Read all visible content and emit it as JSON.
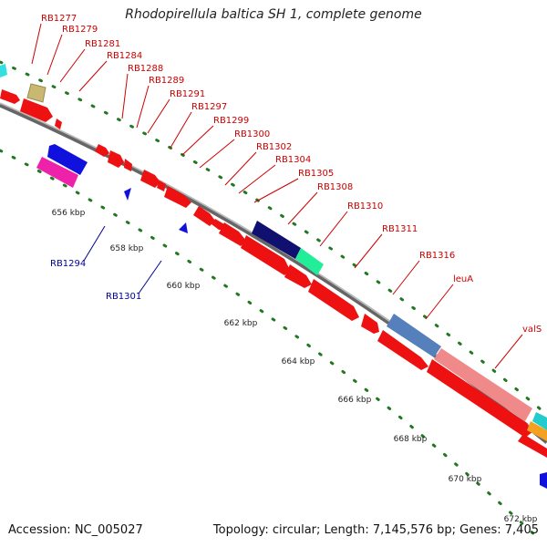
{
  "title": "Rhodopirellula baltica SH 1, complete genome",
  "footer": {
    "accession": "Accession: NC_005027",
    "summary": "Topology: circular; Length: 7,145,576 bp; Genes: 7,405"
  },
  "colors": {
    "label_red": "#cc0000",
    "label_blue": "#000099",
    "backbone": "#777777",
    "tick": "#227722"
  },
  "ticks": [
    {
      "label": "656 kbp"
    },
    {
      "label": "658 kbp"
    },
    {
      "label": "660 kbp"
    },
    {
      "label": "662 kbp"
    },
    {
      "label": "664 kbp"
    },
    {
      "label": "666 kbp"
    },
    {
      "label": "668 kbp"
    },
    {
      "label": "670 kbp"
    },
    {
      "label": "672 kbp"
    }
  ],
  "outer_labels": [
    "RB1277",
    "RB1279",
    "RB1281",
    "RB1284",
    "RB1288",
    "RB1289",
    "RB1291",
    "RB1297",
    "RB1299",
    "RB1300",
    "RB1302",
    "RB1304",
    "RB1305",
    "RB1308",
    "RB1310",
    "RB1311",
    "RB1316",
    "leuA",
    "valS"
  ],
  "inner_labels": [
    "RB1294",
    "RB1301"
  ]
}
